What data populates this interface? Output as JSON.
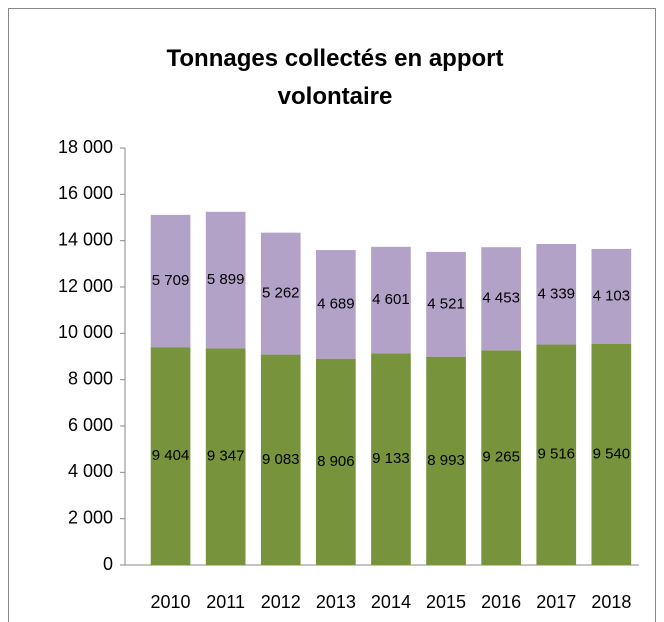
{
  "chart_data": {
    "type": "stacked-bar",
    "title": "Tonnages collectés en apport volontaire",
    "categories": [
      "2010",
      "2011",
      "2012",
      "2013",
      "2014",
      "2015",
      "2016",
      "2017",
      "2018"
    ],
    "series": [
      {
        "color": "#77933c",
        "values": [
          9404,
          9347,
          9083,
          8906,
          9133,
          8993,
          9265,
          9516,
          9540
        ],
        "value_labels": [
          "9 404",
          "9 347",
          "9 083",
          "8 906",
          "9 133",
          "8 993",
          "9 265",
          "9 516",
          "9 540"
        ]
      },
      {
        "color": "#b3a2c7",
        "values": [
          5709,
          5899,
          5262,
          4689,
          4601,
          4521,
          4453,
          4339,
          4103
        ],
        "value_labels": [
          "5 709",
          "5 899",
          "5 262",
          "4 689",
          "4 601",
          "4 521",
          "4 453",
          "4 339",
          "4 103"
        ]
      }
    ],
    "ylim": [
      0,
      18000
    ],
    "yticks": [
      0,
      {
        "value": 2000,
        "label": "2 000"
      },
      {
        "value": 4000,
        "label": "4 000"
      },
      {
        "value": 6000,
        "label": "6 000"
      },
      {
        "value": 8000,
        "label": "8 000"
      },
      {
        "value": 10000,
        "label": "10 000"
      },
      {
        "value": 12000,
        "label": "12 000"
      },
      {
        "value": 14000,
        "label": "14 000"
      },
      {
        "value": 16000,
        "label": "16 000"
      },
      {
        "value": 18000,
        "label": "18 000"
      }
    ]
  }
}
